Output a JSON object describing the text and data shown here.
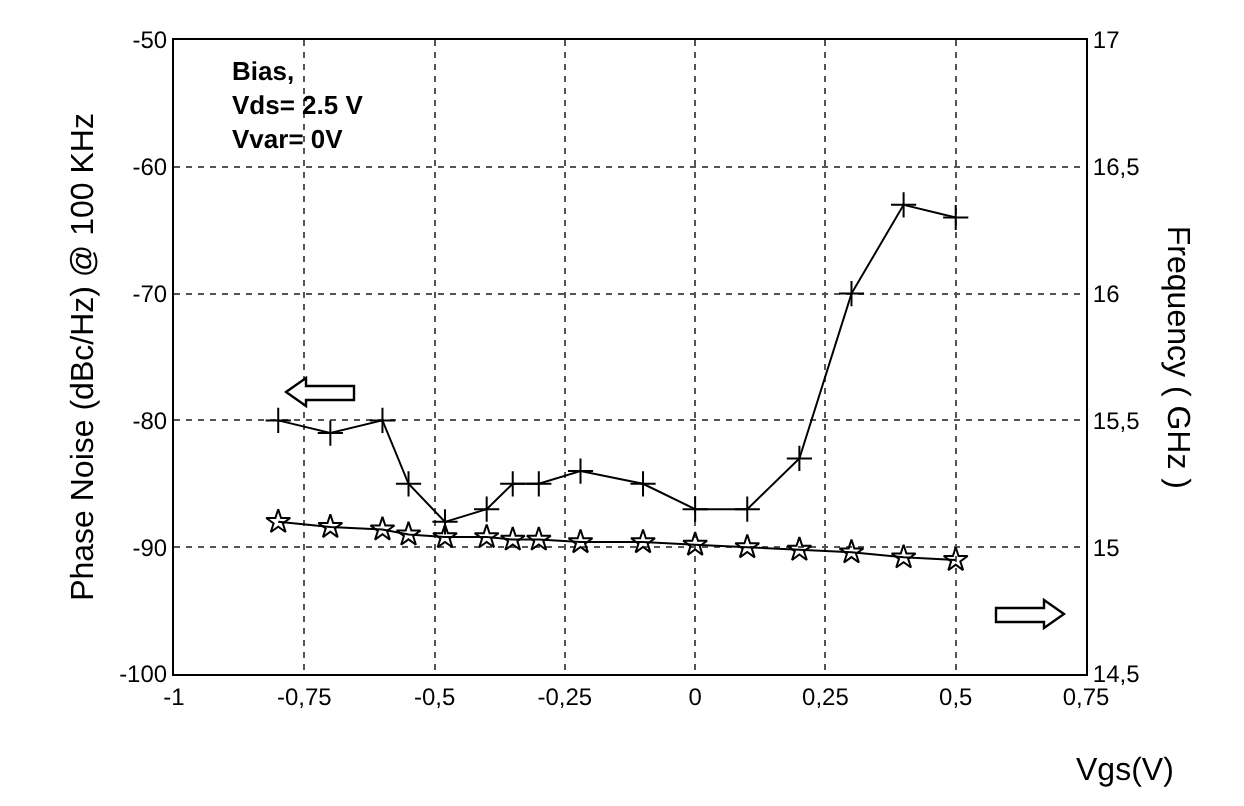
{
  "chart_data": {
    "type": "line",
    "xlabel": "Vgs(V)",
    "ylabel": "Phase Noise (dBc/Hz) @ 100 KHz",
    "y2label": "Frequency ( GHz )",
    "annotations": [
      "Bias,\nVds= 2.5 V\nVvar= 0V"
    ],
    "xlim": [
      -1,
      0.75
    ],
    "xticks": [
      {
        "value": -1,
        "label": "-1"
      },
      {
        "value": -0.75,
        "label": "-0,75"
      },
      {
        "value": -0.5,
        "label": "-0,5"
      },
      {
        "value": -0.25,
        "label": "-0,25"
      },
      0,
      {
        "value": 0.25,
        "label": "0,25"
      },
      {
        "value": 0.5,
        "label": "0,5"
      },
      {
        "value": 0.75,
        "label": "0,75"
      }
    ],
    "ylim": [
      -100,
      -50
    ],
    "yticks": [
      -100,
      -90,
      -80,
      -70,
      -60,
      -50
    ],
    "y2lim": [
      14.5,
      17
    ],
    "y2ticks": [
      {
        "value": 14.5,
        "label": "14,5"
      },
      15,
      {
        "value": 15.5,
        "label": "15,5"
      },
      16,
      {
        "value": 16.5,
        "label": "16,5"
      },
      17
    ],
    "grid": true,
    "line_style": "solid",
    "series": [
      {
        "color": "#000000",
        "marker": "cross",
        "x": [
          -0.8,
          -0.7,
          -0.6,
          -0.55,
          -0.48,
          -0.4,
          -0.35,
          -0.3,
          -0.22,
          -0.1,
          0,
          0.1,
          0.2,
          0.3,
          0.4,
          0.5
        ],
        "values": [
          -80,
          -81,
          -80,
          -85,
          -88,
          -87,
          -85,
          -85,
          -84,
          -85,
          -87,
          -87,
          -83,
          -70,
          -63,
          -64
        ]
      },
      {
        "color": "#000000",
        "marker": "star",
        "axis": "y2",
        "x": [
          -0.8,
          -0.7,
          -0.6,
          -0.55,
          -0.48,
          -0.4,
          -0.35,
          -0.3,
          -0.22,
          -0.1,
          0,
          0.1,
          0.2,
          0.3,
          0.4,
          0.5
        ],
        "values": [
          15.1,
          15.08,
          15.07,
          15.05,
          15.04,
          15.04,
          15.03,
          15.03,
          15.02,
          15.02,
          15.01,
          15.0,
          14.99,
          14.98,
          14.96,
          14.95
        ]
      }
    ]
  }
}
